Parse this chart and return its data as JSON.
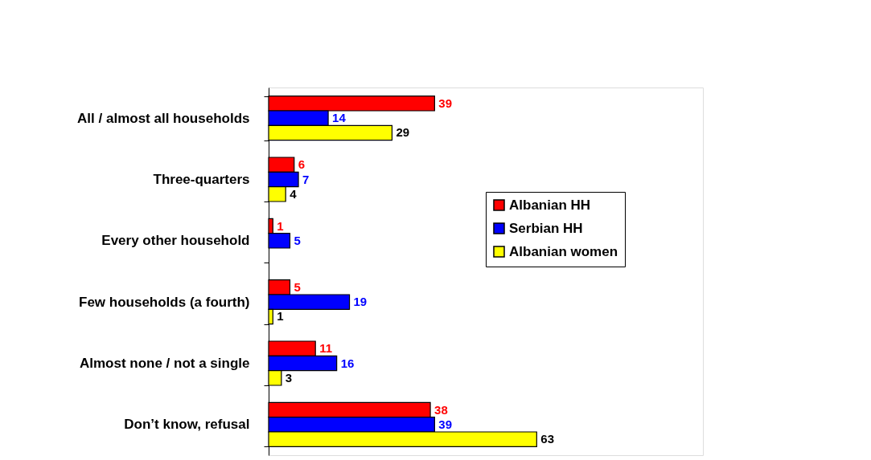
{
  "chart_data": {
    "type": "bar",
    "orientation": "horizontal",
    "categories": [
      "All / almost all households",
      "Three-quarters",
      "Every other household",
      "Few households (a fourth)",
      "Almost none / not a single",
      "Don’t know, refusal"
    ],
    "series": [
      {
        "name": "Albanian HH",
        "color": "#ff0000",
        "values": [
          39,
          6,
          1,
          5,
          11,
          38
        ]
      },
      {
        "name": "Serbian HH",
        "color": "#0000ff",
        "values": [
          14,
          7,
          5,
          19,
          16,
          39
        ]
      },
      {
        "name": "Albanian women",
        "color": "#ffff00",
        "values": [
          29,
          4,
          null,
          1,
          3,
          63
        ]
      }
    ],
    "data_labels": true,
    "legend": "right",
    "grid": false
  }
}
